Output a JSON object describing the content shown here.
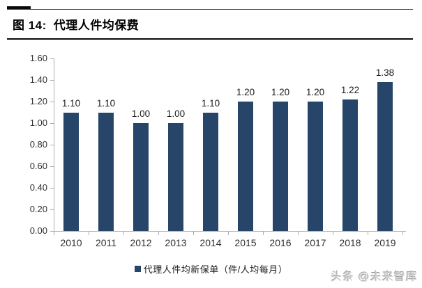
{
  "header": {
    "figure_label": "图 14:",
    "figure_title": "代理人件均保费"
  },
  "chart_data": {
    "type": "bar",
    "title": "代理人件均保费",
    "categories": [
      "2010",
      "2011",
      "2012",
      "2013",
      "2014",
      "2015",
      "2016",
      "2017",
      "2018",
      "2019"
    ],
    "values": [
      1.1,
      1.1,
      1.0,
      1.0,
      1.1,
      1.2,
      1.2,
      1.2,
      1.22,
      1.38
    ],
    "value_labels": [
      "1.10",
      "1.10",
      "1.00",
      "1.00",
      "1.10",
      "1.20",
      "1.20",
      "1.20",
      "1.22",
      "1.38"
    ],
    "xlabel": "",
    "ylabel": "",
    "ylim": [
      0,
      1.6
    ],
    "yticks": [
      "0.00",
      "0.20",
      "0.40",
      "0.60",
      "0.80",
      "1.00",
      "1.20",
      "1.40",
      "1.60"
    ],
    "grid": "off",
    "legend_position": "bottom",
    "legend": [
      {
        "label": "代理人件均新保单（件/人均每月）",
        "color": "#264569"
      }
    ],
    "bar_color": "#264569"
  },
  "watermark": {
    "text": "头条 @未来智库"
  },
  "colors": {
    "bar": "#264569",
    "axis": "#adadad",
    "tick_label": "#303030",
    "title": "#000000",
    "watermark": "#d4d4d4"
  }
}
